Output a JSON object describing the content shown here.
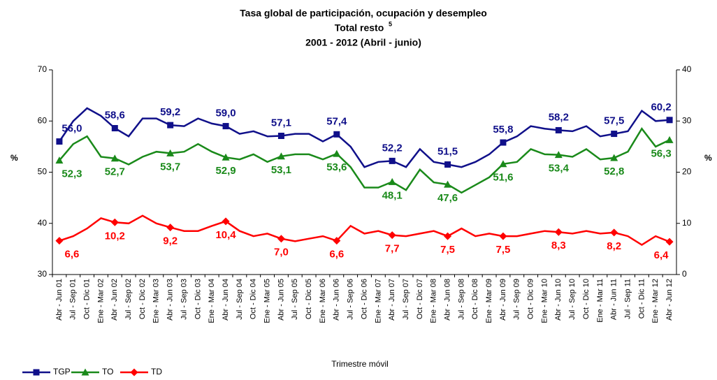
{
  "chart_data": {
    "type": "line",
    "title": "Tasa global de participación, ocupación y desempleo",
    "subtitle": "Total resto",
    "subtitle_note": "5",
    "period": "2001 - 2012 (Abril - junio)",
    "x_label": "Trimestre móvil",
    "y_label": "%",
    "y2_label": "%",
    "categories": [
      "Abr - Jun 01",
      "Jul - Sep 01",
      "Oct - Dic 01",
      "Ene - Mar 02",
      "Abr - Jun 02",
      "Jul - Sep 02",
      "Oct - Dic 02",
      "Ene - Mar 03",
      "Abr - Jun 03",
      "Jul - Sep 03",
      "Oct - Dic 03",
      "Ene - Mar 04",
      "Abr - Jun 04",
      "Jul - Sep 04",
      "Oct - Dic 04",
      "Ene - Mar 05",
      "Abr - Jun 05",
      "Jul - Sep 05",
      "Oct - Dic 05",
      "Ene - Mar 06",
      "Abr - Jun 06",
      "Jul - Sep 06",
      "Oct - Dic 06",
      "Ene - Mar 07",
      "Abr - Jun 07",
      "Jul - Sep 07",
      "Oct - Dic 07",
      "Ene - Mar 08",
      "Abr - Jun 08",
      "Jul - Sep 08",
      "Oct - Dic 08",
      "Ene - Mar 09",
      "Abr - Jun 09",
      "Jul - Sep 09",
      "Oct - Dic 09",
      "Ene - Mar 10",
      "Abr - Jun 10",
      "Jul - Sep 10",
      "Oct - Dic 10",
      "Ene - Mar 11",
      "Abr - Jun 11",
      "Jul - Sep 11",
      "Oct - Dic 11",
      "Ene - Mar 12",
      "Abr - Jun 12"
    ],
    "ylim": [
      30,
      70
    ],
    "yticks": [
      30,
      40,
      50,
      60,
      70
    ],
    "y2lim": [
      0,
      40
    ],
    "y2ticks": [
      0,
      10,
      20,
      30,
      40
    ],
    "grid": false,
    "legend": "bottom-left",
    "series": [
      {
        "name": "TGP",
        "color": "#10108a",
        "marker": "square",
        "label_position": "above",
        "values": [
          56.0,
          60,
          62.5,
          61,
          58.6,
          57,
          60.5,
          60.5,
          59.2,
          59,
          60.5,
          59.5,
          59.0,
          57.5,
          58,
          57,
          57.1,
          57.5,
          57.5,
          56,
          57.4,
          55,
          51,
          52,
          52.2,
          51,
          54.5,
          52,
          51.5,
          51,
          52,
          53.5,
          55.8,
          57,
          59,
          58.5,
          58.2,
          58,
          59,
          57,
          57.5,
          58,
          62,
          60,
          60.2
        ],
        "value_labels": [
          "56,0",
          null,
          null,
          null,
          "58,6",
          null,
          null,
          null,
          "59,2",
          null,
          null,
          null,
          "59,0",
          null,
          null,
          null,
          "57,1",
          null,
          null,
          null,
          "57,4",
          null,
          null,
          null,
          "52,2",
          null,
          null,
          null,
          "51,5",
          null,
          null,
          null,
          "55,8",
          null,
          null,
          null,
          "58,2",
          null,
          null,
          null,
          "57,5",
          null,
          null,
          null,
          "60,2"
        ]
      },
      {
        "name": "TO",
        "color": "#1a8a1a",
        "marker": "triangle",
        "label_position": "below",
        "values": [
          52.3,
          55.5,
          57,
          53,
          52.7,
          51.5,
          53,
          54,
          53.7,
          54,
          55.5,
          54,
          52.9,
          52.5,
          53.5,
          52,
          53.1,
          53.5,
          53.5,
          52.5,
          53.6,
          51,
          47,
          47,
          48.1,
          46.5,
          50.5,
          48,
          47.6,
          46,
          47.5,
          49,
          51.6,
          52,
          54.5,
          53.5,
          53.4,
          53,
          54.5,
          52.5,
          52.8,
          54,
          58.5,
          55,
          56.3
        ],
        "value_labels": [
          "52,3",
          null,
          null,
          null,
          "52,7",
          null,
          null,
          null,
          "53,7",
          null,
          null,
          null,
          "52,9",
          null,
          null,
          null,
          "53,1",
          null,
          null,
          null,
          "53,6",
          null,
          null,
          null,
          "48,1",
          null,
          null,
          null,
          "47,6",
          null,
          null,
          null,
          "51,6",
          null,
          null,
          null,
          "53,4",
          null,
          null,
          null,
          "52,8",
          null,
          null,
          null,
          "56,3"
        ]
      },
      {
        "name": "TD",
        "color": "#ff0000",
        "marker": "diamond",
        "label_position": "below",
        "axis": "y2",
        "values": [
          6.6,
          7.5,
          9,
          11,
          10.2,
          10,
          11.5,
          10,
          9.2,
          8.5,
          8.5,
          9.5,
          10.4,
          8.5,
          7.5,
          8,
          7.0,
          6.5,
          7,
          7.5,
          6.6,
          9.5,
          8,
          8.5,
          7.7,
          7.5,
          8,
          8.5,
          7.5,
          9,
          7.5,
          8,
          7.5,
          7.5,
          8,
          8.5,
          8.3,
          8,
          8.5,
          8,
          8.2,
          7.5,
          5.8,
          7.5,
          6.4
        ],
        "value_labels": [
          "6,6",
          null,
          null,
          null,
          "10,2",
          null,
          null,
          null,
          "9,2",
          null,
          null,
          null,
          "10,4",
          null,
          null,
          null,
          "7,0",
          null,
          null,
          null,
          "6,6",
          null,
          null,
          null,
          "7,7",
          null,
          null,
          null,
          "7,5",
          null,
          null,
          null,
          "7,5",
          null,
          null,
          null,
          "8,3",
          null,
          null,
          null,
          "8,2",
          null,
          null,
          null,
          "6,4"
        ]
      }
    ]
  }
}
